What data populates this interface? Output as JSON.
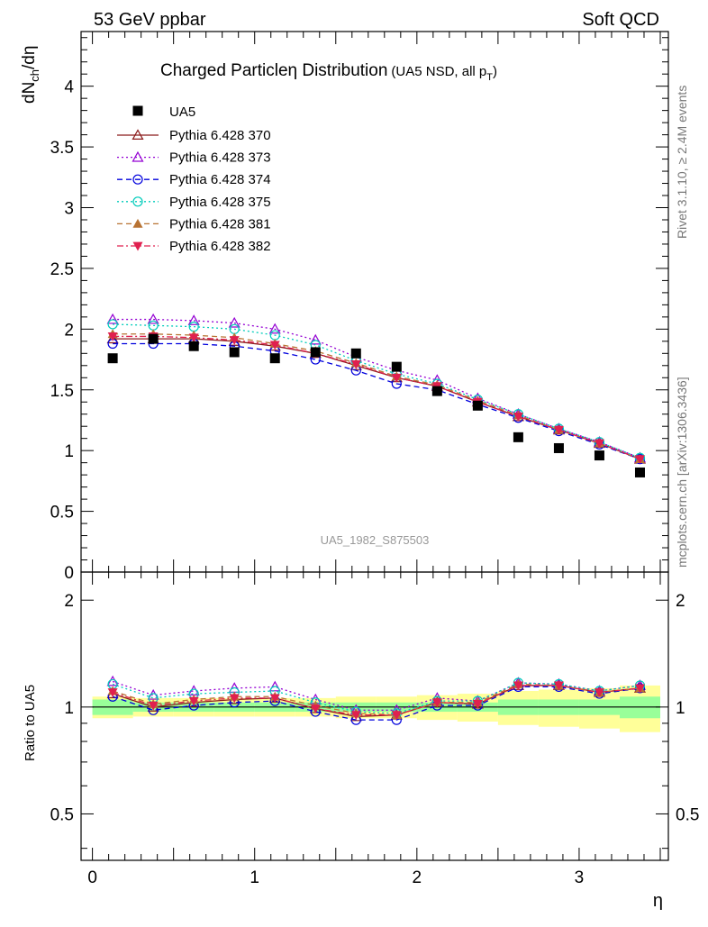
{
  "header": {
    "left": "53 GeV ppbar",
    "right": "Soft QCD"
  },
  "side_labels": {
    "rivet": "Rivet 3.1.10, ≥ 2.4M events",
    "mcplots": "mcplots.cern.ch [arXiv:1306.3436]"
  },
  "chart_data": [
    {
      "type": "scatter",
      "title": "Charged Particleη Distribution",
      "title_sub": "(UA5 NSD, all p",
      "title_sub_t": "T",
      "title_sub_close": ")",
      "ylabel": "dN",
      "ylabel_sub": "ch",
      "ylabel_tail": "/dη",
      "watermark": "UA5_1982_S875503",
      "xlim": [
        -0.07,
        3.55
      ],
      "ylim": [
        0,
        4.45
      ],
      "yticks": [
        0,
        0.5,
        1,
        1.5,
        2,
        2.5,
        3,
        3.5,
        4
      ],
      "ytick_labels": [
        "0",
        "0.5",
        "1",
        "1.5",
        "2",
        "2.5",
        "3",
        "3.5",
        "4"
      ],
      "legend_position": "top-left",
      "x": [
        0.125,
        0.375,
        0.625,
        0.875,
        1.125,
        1.375,
        1.625,
        1.875,
        2.125,
        2.375,
        2.625,
        2.875,
        3.125,
        3.375
      ],
      "data": {
        "name": "UA5",
        "color": "#000000",
        "marker": "square",
        "values": [
          1.76,
          1.92,
          1.86,
          1.81,
          1.76,
          1.81,
          1.8,
          1.69,
          1.49,
          1.37,
          1.11,
          1.02,
          0.96,
          0.82
        ]
      },
      "series": [
        {
          "name": "Pythia 6.428 370",
          "color": "#8b1a1a",
          "marker": "triangle-open",
          "dash": "solid",
          "values": [
            1.92,
            1.92,
            1.92,
            1.9,
            1.86,
            1.8,
            1.7,
            1.6,
            1.53,
            1.4,
            1.28,
            1.17,
            1.06,
            0.93
          ]
        },
        {
          "name": "Pythia 6.428 373",
          "color": "#9400d3",
          "marker": "triangle-open",
          "dash": "dot",
          "values": [
            2.08,
            2.08,
            2.07,
            2.05,
            2.0,
            1.91,
            1.77,
            1.66,
            1.58,
            1.43,
            1.3,
            1.18,
            1.07,
            0.94
          ]
        },
        {
          "name": "Pythia 6.428 374",
          "color": "#0000dd",
          "marker": "circle-open",
          "dash": "dash",
          "values": [
            1.88,
            1.88,
            1.88,
            1.86,
            1.82,
            1.75,
            1.66,
            1.55,
            1.5,
            1.38,
            1.27,
            1.16,
            1.05,
            0.93
          ]
        },
        {
          "name": "Pythia 6.428 375",
          "color": "#00ccbb",
          "marker": "circle-open",
          "dash": "dot",
          "values": [
            2.04,
            2.03,
            2.02,
            2.0,
            1.95,
            1.87,
            1.74,
            1.63,
            1.55,
            1.42,
            1.3,
            1.18,
            1.07,
            0.94
          ]
        },
        {
          "name": "Pythia 6.428 381",
          "color": "#b87333",
          "marker": "triangle-filled",
          "dash": "dash",
          "values": [
            1.96,
            1.96,
            1.95,
            1.93,
            1.88,
            1.82,
            1.72,
            1.61,
            1.54,
            1.41,
            1.29,
            1.17,
            1.06,
            0.93
          ]
        },
        {
          "name": "Pythia 6.428 382",
          "color": "#e0204f",
          "marker": "triangledown-filled",
          "dash": "dashdot",
          "values": [
            1.94,
            1.94,
            1.93,
            1.91,
            1.87,
            1.8,
            1.71,
            1.6,
            1.53,
            1.4,
            1.28,
            1.17,
            1.06,
            0.93
          ]
        }
      ]
    },
    {
      "type": "scatter",
      "ylabel": "Ratio to UA5",
      "xlabel": "η",
      "xlim": [
        -0.07,
        3.55
      ],
      "ylim": [
        0.37,
        2.4
      ],
      "xticks": [
        0,
        1,
        2,
        3
      ],
      "xtick_labels": [
        "0",
        "1",
        "2",
        "3"
      ],
      "yticks": [
        0.5,
        1,
        2
      ],
      "ytick_labels": [
        "0.5",
        "1",
        "2"
      ],
      "band_green": [
        0.05,
        0.03,
        0.03,
        0.03,
        0.03,
        0.03,
        0.03,
        0.03,
        0.03,
        0.03,
        0.05,
        0.05,
        0.05,
        0.07
      ],
      "band_yellow": [
        0.07,
        0.06,
        0.06,
        0.06,
        0.06,
        0.06,
        0.07,
        0.07,
        0.08,
        0.09,
        0.11,
        0.12,
        0.13,
        0.15
      ],
      "series": [
        {
          "name": "Pythia 6.428 370",
          "values": [
            1.09,
            1.0,
            1.03,
            1.05,
            1.06,
            0.99,
            0.94,
            0.95,
            1.03,
            1.02,
            1.15,
            1.15,
            1.1,
            1.13
          ]
        },
        {
          "name": "Pythia 6.428 373",
          "values": [
            1.18,
            1.08,
            1.11,
            1.13,
            1.14,
            1.05,
            0.98,
            0.98,
            1.06,
            1.04,
            1.17,
            1.16,
            1.11,
            1.15
          ]
        },
        {
          "name": "Pythia 6.428 374",
          "values": [
            1.07,
            0.98,
            1.01,
            1.03,
            1.04,
            0.97,
            0.92,
            0.92,
            1.01,
            1.01,
            1.14,
            1.14,
            1.09,
            1.13
          ]
        },
        {
          "name": "Pythia 6.428 375",
          "values": [
            1.16,
            1.06,
            1.09,
            1.1,
            1.11,
            1.03,
            0.97,
            0.96,
            1.04,
            1.04,
            1.17,
            1.16,
            1.11,
            1.15
          ]
        },
        {
          "name": "Pythia 6.428 381",
          "values": [
            1.11,
            1.02,
            1.05,
            1.07,
            1.07,
            1.01,
            0.96,
            0.95,
            1.03,
            1.03,
            1.16,
            1.15,
            1.1,
            1.13
          ]
        },
        {
          "name": "Pythia 6.428 382",
          "values": [
            1.1,
            1.01,
            1.04,
            1.06,
            1.06,
            0.99,
            0.95,
            0.95,
            1.03,
            1.02,
            1.15,
            1.15,
            1.1,
            1.13
          ]
        }
      ]
    }
  ]
}
